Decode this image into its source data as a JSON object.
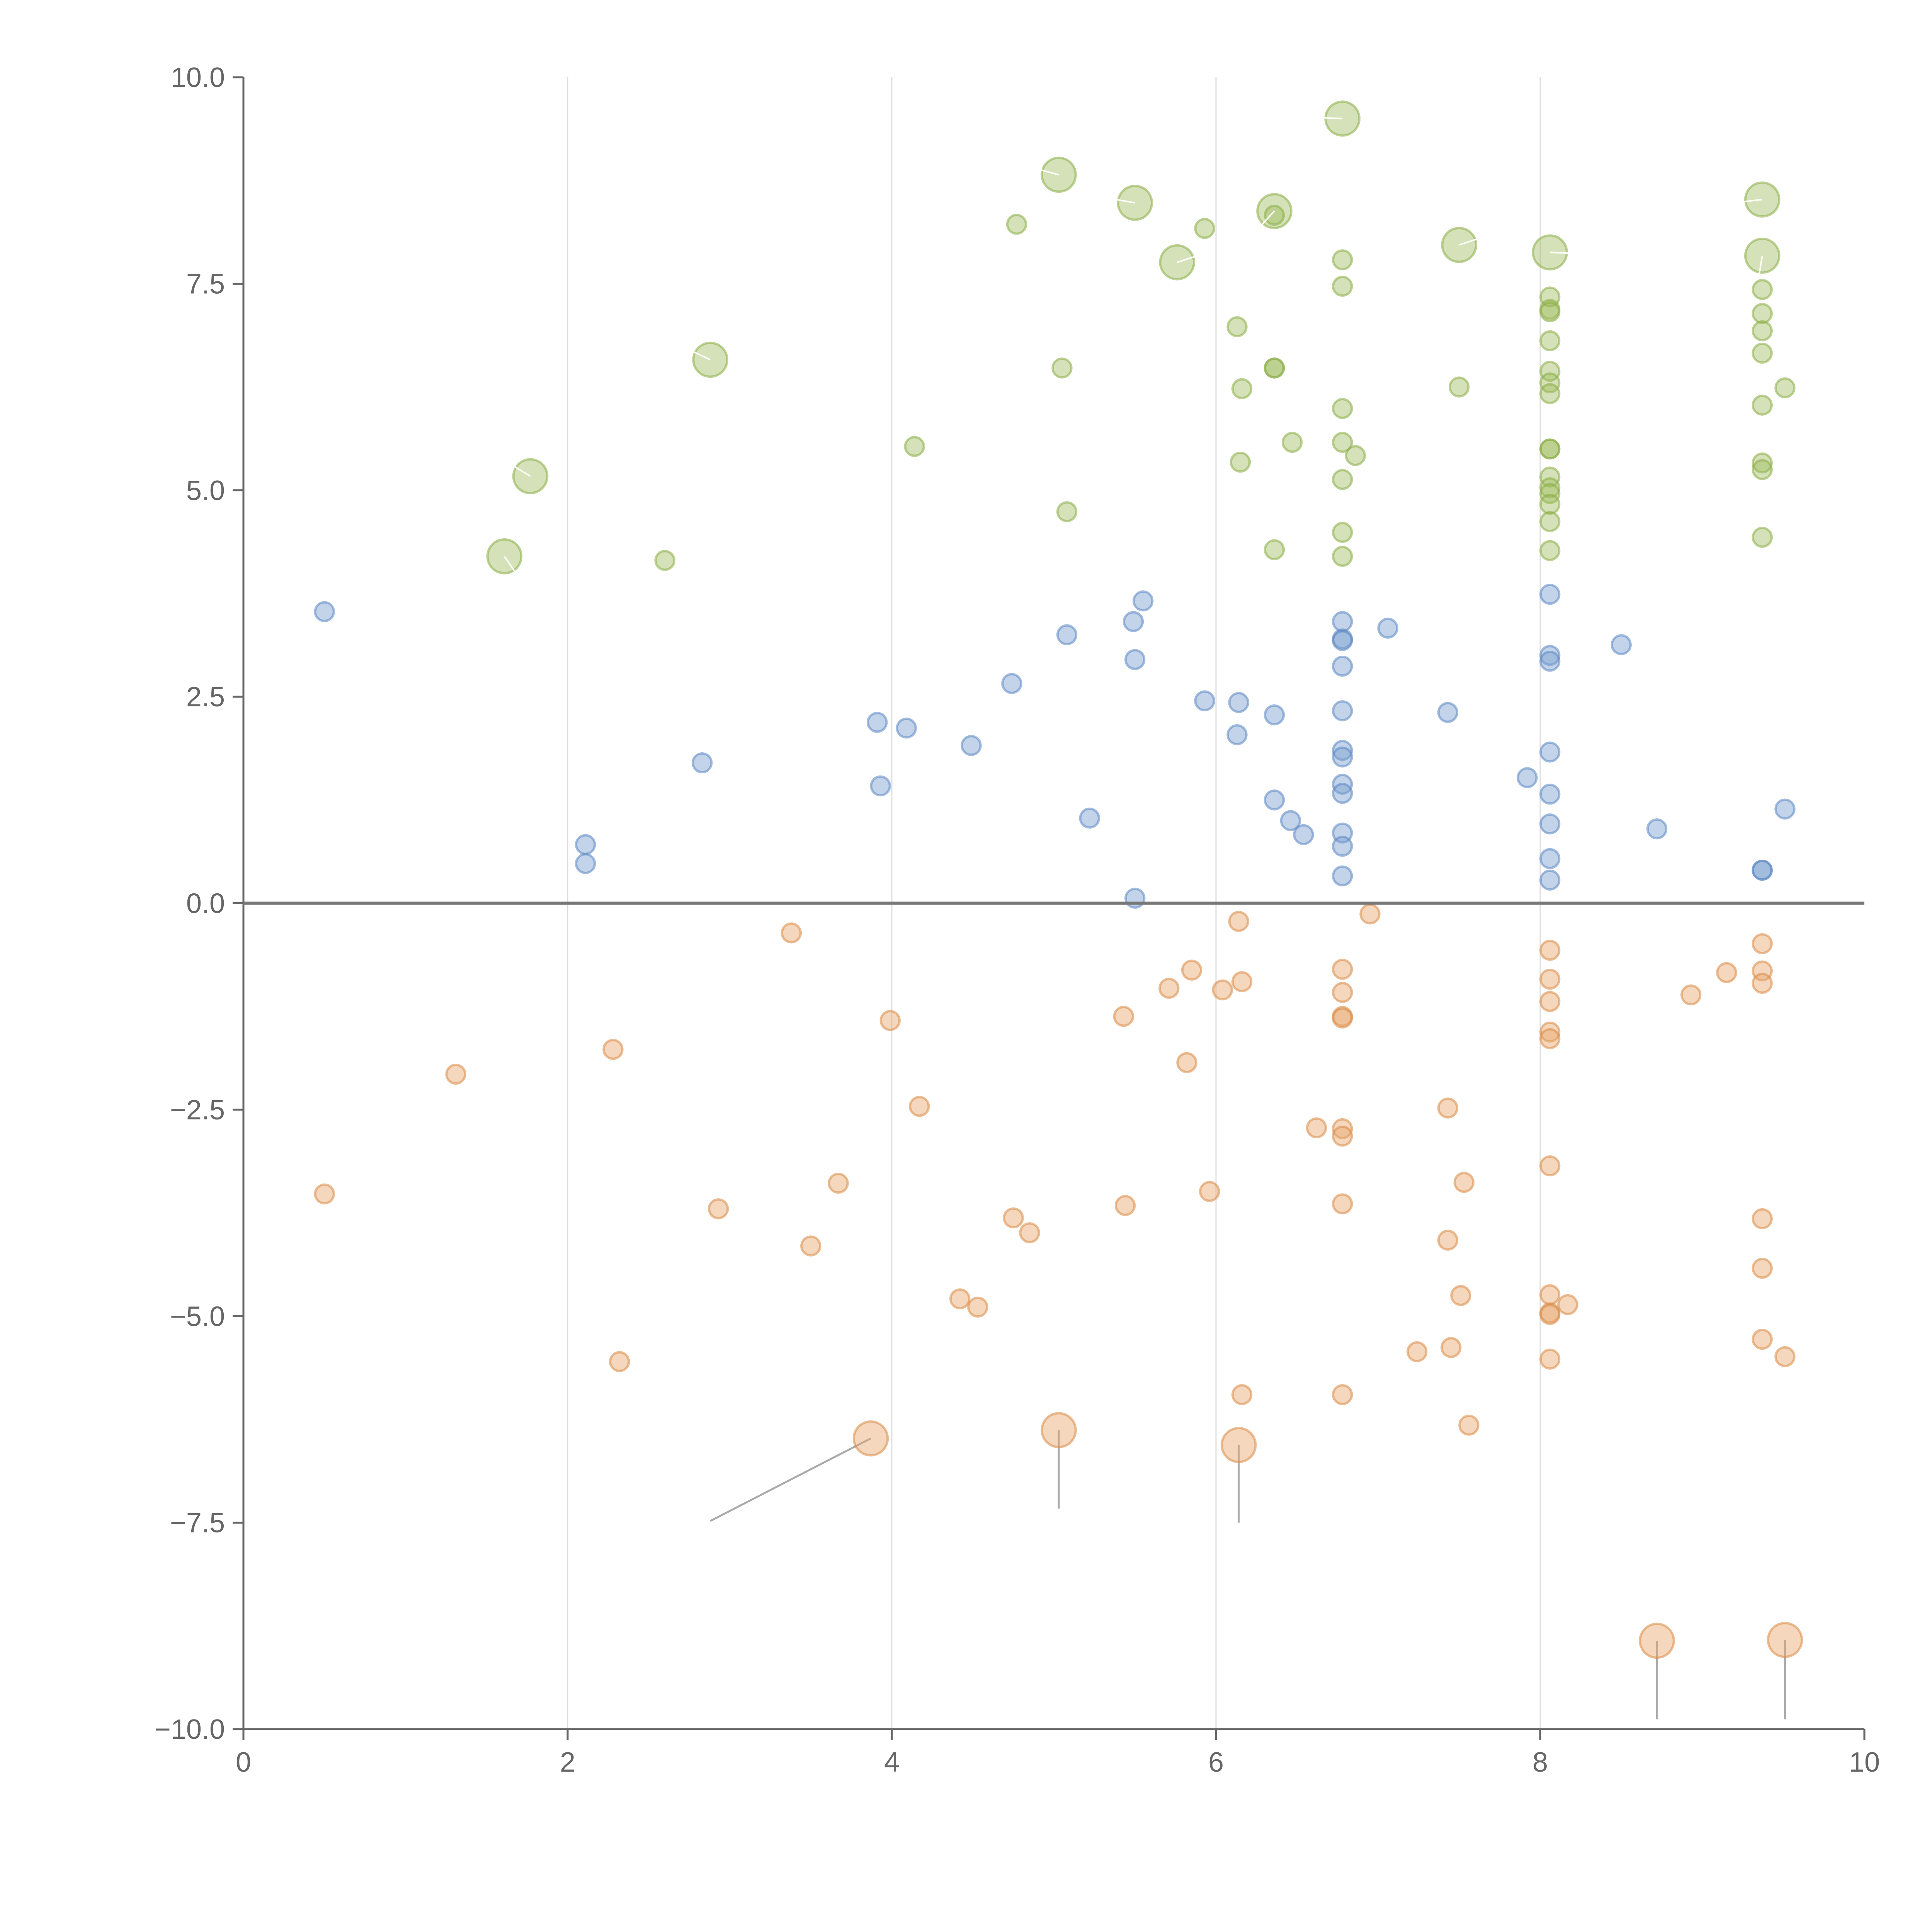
{
  "chart_data": {
    "type": "scatter",
    "title": "",
    "xlabel": "",
    "ylabel": "",
    "xlim": [
      0,
      10
    ],
    "ylim": [
      -10,
      10
    ],
    "grid": "vertical",
    "x_ticks": [
      {
        "value": 0,
        "label": "0"
      },
      {
        "value": 2,
        "label": "2"
      },
      {
        "value": 4,
        "label": "4"
      },
      {
        "value": 6,
        "label": "6"
      },
      {
        "value": 8,
        "label": "8"
      },
      {
        "value": 10,
        "label": "10"
      }
    ],
    "y_ticks": [
      {
        "value": 10,
        "label": "10.0"
      },
      {
        "value": 7.5,
        "label": "7.5"
      },
      {
        "value": 5,
        "label": "5.0"
      },
      {
        "value": 2.5,
        "label": "2.5"
      },
      {
        "value": 0,
        "label": "0.0"
      },
      {
        "value": -2.5,
        "label": "−2.5"
      },
      {
        "value": -5,
        "label": "−5.0"
      },
      {
        "value": -7.5,
        "label": "−7.5"
      },
      {
        "value": -10,
        "label": "−10.0"
      }
    ],
    "reference_line_y": 0,
    "series": [
      {
        "name": "green",
        "color": "#9bbb59",
        "edge": "#8aad45",
        "opacity": 0.42,
        "small_radius": 0.16,
        "large_radius": 0.29,
        "points": [
          [
            9.37,
            8.52,
            1
          ],
          [
            9.37,
            7.84,
            1
          ],
          [
            8.06,
            7.88,
            1
          ],
          [
            7.5,
            7.97,
            1
          ],
          [
            6.36,
            8.38,
            1
          ],
          [
            6.78,
            9.5,
            1
          ],
          [
            5.03,
            8.82,
            1
          ],
          [
            5.5,
            8.48,
            1
          ],
          [
            5.76,
            7.76,
            1
          ],
          [
            2.88,
            6.58,
            1
          ],
          [
            1.77,
            5.17,
            1
          ],
          [
            1.61,
            4.2,
            1
          ],
          [
            4.77,
            8.22,
            0
          ],
          [
            5.93,
            8.17,
            0
          ],
          [
            6.36,
            8.33,
            0
          ],
          [
            6.13,
            6.98,
            0
          ],
          [
            6.16,
            6.23,
            0
          ],
          [
            6.36,
            6.48,
            0
          ],
          [
            6.36,
            6.48,
            0
          ],
          [
            5.05,
            6.48,
            0
          ],
          [
            4.14,
            5.53,
            0
          ],
          [
            5.08,
            4.74,
            0
          ],
          [
            2.6,
            4.15,
            0
          ],
          [
            6.15,
            5.34,
            0
          ],
          [
            6.47,
            5.58,
            0
          ],
          [
            6.36,
            4.28,
            0
          ],
          [
            6.78,
            7.79,
            0
          ],
          [
            6.78,
            7.47,
            0
          ],
          [
            6.78,
            5.99,
            0
          ],
          [
            6.78,
            5.58,
            0
          ],
          [
            6.86,
            5.42,
            0
          ],
          [
            6.78,
            5.13,
            0
          ],
          [
            6.78,
            4.49,
            0
          ],
          [
            6.78,
            4.2,
            0
          ],
          [
            7.5,
            6.25,
            0
          ],
          [
            8.06,
            7.34,
            0
          ],
          [
            8.06,
            7.19,
            0
          ],
          [
            8.06,
            7.16,
            0
          ],
          [
            8.06,
            6.81,
            0
          ],
          [
            8.06,
            6.44,
            0
          ],
          [
            8.06,
            6.3,
            0
          ],
          [
            8.06,
            6.17,
            0
          ],
          [
            8.06,
            5.5,
            0
          ],
          [
            8.06,
            5.5,
            0
          ],
          [
            8.06,
            5.16,
            0
          ],
          [
            8.06,
            5.03,
            0
          ],
          [
            8.06,
            4.96,
            0
          ],
          [
            8.06,
            4.83,
            0
          ],
          [
            8.06,
            4.62,
            0
          ],
          [
            8.06,
            4.27,
            0
          ],
          [
            9.37,
            7.43,
            0
          ],
          [
            9.37,
            7.14,
            0
          ],
          [
            9.37,
            6.93,
            0
          ],
          [
            9.37,
            6.66,
            0
          ],
          [
            9.37,
            6.03,
            0
          ],
          [
            9.51,
            6.24,
            0
          ],
          [
            9.37,
            5.33,
            0
          ],
          [
            9.37,
            5.25,
            0
          ],
          [
            9.37,
            4.43,
            0
          ]
        ]
      },
      {
        "name": "blue",
        "color": "#7a9fd1",
        "edge": "#5b86c2",
        "opacity": 0.45,
        "small_radius": 0.16,
        "large_radius": 0.29,
        "points": [
          [
            0.5,
            3.53,
            0
          ],
          [
            2.11,
            0.71,
            0
          ],
          [
            2.11,
            0.48,
            0
          ],
          [
            2.83,
            1.7,
            0
          ],
          [
            3.91,
            2.19,
            0
          ],
          [
            4.09,
            2.12,
            0
          ],
          [
            3.93,
            1.42,
            0
          ],
          [
            4.49,
            1.91,
            0
          ],
          [
            4.74,
            2.66,
            0
          ],
          [
            5.08,
            3.25,
            0
          ],
          [
            5.22,
            1.03,
            0
          ],
          [
            5.49,
            3.41,
            0
          ],
          [
            5.55,
            3.66,
            0
          ],
          [
            5.5,
            2.95,
            0
          ],
          [
            5.5,
            0.06,
            0
          ],
          [
            5.93,
            2.45,
            0
          ],
          [
            6.14,
            2.43,
            0
          ],
          [
            6.13,
            2.04,
            0
          ],
          [
            6.36,
            2.28,
            0
          ],
          [
            6.36,
            1.25,
            0
          ],
          [
            6.46,
            1.0,
            0
          ],
          [
            6.54,
            0.83,
            0
          ],
          [
            6.78,
            3.41,
            0
          ],
          [
            6.78,
            3.2,
            0
          ],
          [
            6.78,
            3.18,
            0
          ],
          [
            6.78,
            2.87,
            0
          ],
          [
            6.78,
            2.33,
            0
          ],
          [
            6.78,
            1.85,
            0
          ],
          [
            6.78,
            1.77,
            0
          ],
          [
            6.78,
            1.44,
            0
          ],
          [
            6.78,
            1.33,
            0
          ],
          [
            6.78,
            0.85,
            0
          ],
          [
            6.78,
            0.69,
            0
          ],
          [
            6.78,
            0.33,
            0
          ],
          [
            7.06,
            3.33,
            0
          ],
          [
            7.43,
            2.31,
            0
          ],
          [
            7.92,
            1.52,
            0
          ],
          [
            8.06,
            3.74,
            0
          ],
          [
            8.06,
            3.0,
            0
          ],
          [
            8.06,
            2.93,
            0
          ],
          [
            8.06,
            1.83,
            0
          ],
          [
            8.06,
            1.32,
            0
          ],
          [
            8.06,
            0.96,
            0
          ],
          [
            8.06,
            0.54,
            0
          ],
          [
            8.06,
            0.28,
            0
          ],
          [
            8.5,
            3.13,
            0
          ],
          [
            8.72,
            0.9,
            0
          ],
          [
            9.37,
            0.4,
            0
          ],
          [
            9.37,
            0.4,
            0
          ],
          [
            9.51,
            1.14,
            0
          ]
        ]
      },
      {
        "name": "orange",
        "color": "#e9a66c",
        "edge": "#d98a45",
        "opacity": 0.45,
        "small_radius": 0.16,
        "large_radius": 0.29,
        "points": [
          [
            3.87,
            -6.48,
            1
          ],
          [
            5.03,
            -6.38,
            1
          ],
          [
            6.14,
            -6.56,
            1
          ],
          [
            8.72,
            -8.93,
            1
          ],
          [
            9.51,
            -8.92,
            1
          ],
          [
            0.5,
            -3.52,
            0
          ],
          [
            1.31,
            -2.07,
            0
          ],
          [
            2.28,
            -1.77,
            0
          ],
          [
            2.32,
            -5.55,
            0
          ],
          [
            2.93,
            -3.7,
            0
          ],
          [
            3.38,
            -0.36,
            0
          ],
          [
            3.5,
            -4.15,
            0
          ],
          [
            3.67,
            -3.39,
            0
          ],
          [
            3.99,
            -1.42,
            0
          ],
          [
            4.17,
            -2.46,
            0
          ],
          [
            4.42,
            -4.79,
            0
          ],
          [
            4.53,
            -4.89,
            0
          ],
          [
            4.75,
            -3.81,
            0
          ],
          [
            4.85,
            -3.99,
            0
          ],
          [
            5.43,
            -1.37,
            0
          ],
          [
            5.44,
            -3.66,
            0
          ],
          [
            5.71,
            -1.03,
            0
          ],
          [
            5.82,
            -1.93,
            0
          ],
          [
            5.85,
            -0.81,
            0
          ],
          [
            5.96,
            -3.49,
            0
          ],
          [
            6.04,
            -1.05,
            0
          ],
          [
            6.14,
            -0.22,
            0
          ],
          [
            6.16,
            -0.95,
            0
          ],
          [
            6.16,
            -5.95,
            0
          ],
          [
            6.62,
            -2.72,
            0
          ],
          [
            6.78,
            -0.8,
            0
          ],
          [
            6.78,
            -1.08,
            0
          ],
          [
            6.78,
            -1.37,
            0
          ],
          [
            6.78,
            -1.39,
            0
          ],
          [
            6.78,
            -2.73,
            0
          ],
          [
            6.78,
            -2.82,
            0
          ],
          [
            6.78,
            -3.64,
            0
          ],
          [
            6.78,
            -5.95,
            0
          ],
          [
            6.95,
            -0.13,
            0
          ],
          [
            7.24,
            -5.43,
            0
          ],
          [
            7.43,
            -2.48,
            0
          ],
          [
            7.43,
            -4.08,
            0
          ],
          [
            7.45,
            -5.38,
            0
          ],
          [
            7.51,
            -4.75,
            0
          ],
          [
            7.53,
            -3.38,
            0
          ],
          [
            7.56,
            -6.32,
            0
          ],
          [
            8.06,
            -0.57,
            0
          ],
          [
            8.06,
            -0.92,
            0
          ],
          [
            8.06,
            -1.19,
            0
          ],
          [
            8.06,
            -1.56,
            0
          ],
          [
            8.06,
            -1.64,
            0
          ],
          [
            8.06,
            -3.18,
            0
          ],
          [
            8.06,
            -4.74,
            0
          ],
          [
            8.06,
            -4.96,
            0
          ],
          [
            8.06,
            -4.98,
            0
          ],
          [
            8.06,
            -5.52,
            0
          ],
          [
            8.17,
            -4.86,
            0
          ],
          [
            8.93,
            -1.11,
            0
          ],
          [
            9.15,
            -0.84,
            0
          ],
          [
            9.37,
            -0.49,
            0
          ],
          [
            9.37,
            -0.82,
            0
          ],
          [
            9.37,
            -0.97,
            0
          ],
          [
            9.37,
            -3.82,
            0
          ],
          [
            9.37,
            -4.42,
            0
          ],
          [
            9.37,
            -5.28,
            0
          ],
          [
            9.51,
            -5.49,
            0
          ]
        ]
      }
    ],
    "leader_lines": [
      {
        "color": "gray",
        "from": [
          3.87,
          -6.48
        ],
        "to": [
          2.88,
          -7.48
        ]
      },
      {
        "color": "gray",
        "from": [
          5.03,
          -6.38
        ],
        "to": [
          5.03,
          -7.33
        ]
      },
      {
        "color": "gray",
        "from": [
          6.14,
          -6.56
        ],
        "to": [
          6.14,
          -7.5
        ]
      },
      {
        "color": "gray",
        "from": [
          8.72,
          -8.93
        ],
        "to": [
          8.72,
          -9.88
        ]
      },
      {
        "color": "gray",
        "from": [
          9.51,
          -8.92
        ],
        "to": [
          9.51,
          -9.88
        ]
      },
      {
        "color": "white",
        "from": [
          6.78,
          9.5
        ],
        "to": [
          6.55,
          9.52
        ]
      },
      {
        "color": "white",
        "from": [
          5.03,
          8.82
        ],
        "to": [
          4.78,
          8.95
        ]
      },
      {
        "color": "white",
        "from": [
          5.5,
          8.48
        ],
        "to": [
          5.15,
          8.6
        ]
      },
      {
        "color": "white",
        "from": [
          5.76,
          7.76
        ],
        "to": [
          5.95,
          7.88
        ]
      },
      {
        "color": "white",
        "from": [
          6.36,
          8.38
        ],
        "to": [
          6.22,
          8.08
        ]
      },
      {
        "color": "white",
        "from": [
          7.5,
          7.97
        ],
        "to": [
          7.7,
          8.1
        ]
      },
      {
        "color": "white",
        "from": [
          8.06,
          7.88
        ],
        "to": [
          8.3,
          7.86
        ]
      },
      {
        "color": "white",
        "from": [
          9.37,
          8.52
        ],
        "to": [
          9.15,
          8.47
        ]
      },
      {
        "color": "white",
        "from": [
          9.37,
          7.84
        ],
        "to": [
          9.35,
          7.6
        ]
      },
      {
        "color": "white",
        "from": [
          2.88,
          6.58
        ],
        "to": [
          2.62,
          6.82
        ]
      },
      {
        "color": "white",
        "from": [
          1.77,
          5.17
        ],
        "to": [
          1.62,
          5.35
        ]
      },
      {
        "color": "white",
        "from": [
          1.61,
          4.2
        ],
        "to": [
          1.68,
          4.0
        ]
      }
    ]
  }
}
